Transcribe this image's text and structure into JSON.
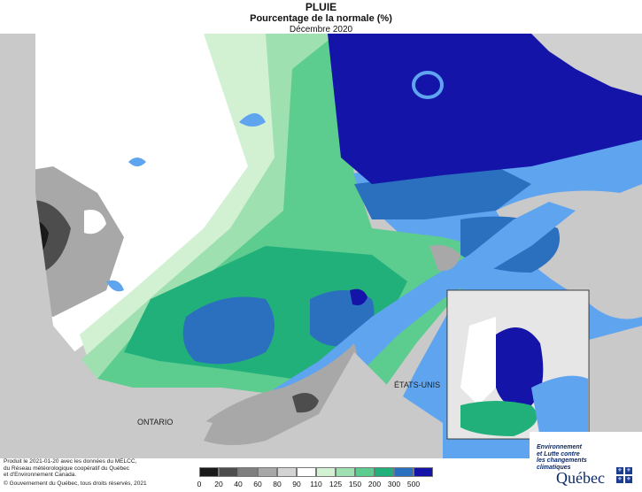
{
  "title": "PLUIE",
  "subtitle": "Pourcentage de la normale (%)",
  "period": "Décembre 2020",
  "labels": {
    "ontario": "ONTARIO",
    "etats_unis": "ÉTATS-UNIS"
  },
  "credits": {
    "line1": "Produit le 2021-01-20 avec les données du MELCC,",
    "line2": "du Réseau météorologique coopératif du Québec",
    "line3": "et d'Environnement Canada.",
    "copyright": "© Gouvernement du Québec, tous droits réservés, 2021"
  },
  "logo": {
    "line1": "Environnement",
    "line2": "et Lutte contre",
    "line3": "les changements",
    "line4": "climatiques",
    "wordmark": "Québec",
    "fleur": "⚜"
  },
  "legend": {
    "ticks": [
      "0",
      "20",
      "40",
      "60",
      "80",
      "90",
      "110",
      "125",
      "150",
      "200",
      "300",
      "500"
    ],
    "colors": [
      "#1a1a1a",
      "#4d4d4d",
      "#7f7f7f",
      "#a8a8a8",
      "#d3d3d3",
      "#ffffff",
      "#d2f0d2",
      "#9fe0b0",
      "#5ccc8f",
      "#22b07a",
      "#2b6fbf",
      "#1414a8"
    ]
  },
  "colors": {
    "water": "#5fa4ef",
    "land_outside": "#c8c8c8",
    "mask": "#ffffff"
  }
}
